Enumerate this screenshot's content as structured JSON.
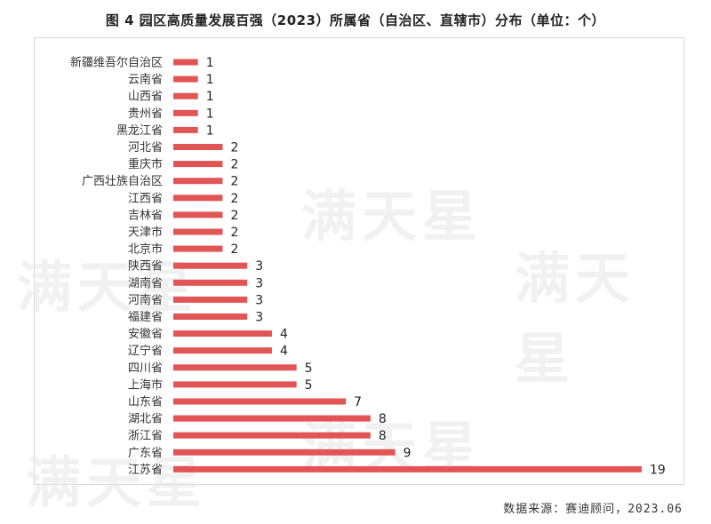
{
  "title": "图 4 园区高质量发展百强（2023）所属省（自治区、直辖市）分布（单位：个）",
  "source": "数据来源：赛迪顾问，2023.06",
  "watermark": "满天星",
  "colors": {
    "bar": "#e15555",
    "label": "#333333",
    "value": "#222222"
  },
  "chart_data": {
    "type": "bar",
    "orientation": "horizontal",
    "title": "图 4 园区高质量发展百强（2023）所属省（自治区、直辖市）分布（单位：个）",
    "xlim": [
      0,
      19
    ],
    "grid": false,
    "categories": [
      "新疆维吾尔自治区",
      "云南省",
      "山西省",
      "贵州省",
      "黑龙江省",
      "河北省",
      "重庆市",
      "广西壮族自治区",
      "江西省",
      "吉林省",
      "天津市",
      "北京市",
      "陕西省",
      "湖南省",
      "河南省",
      "福建省",
      "安徽省",
      "辽宁省",
      "四川省",
      "上海市",
      "山东省",
      "湖北省",
      "浙江省",
      "广东省",
      "江苏省"
    ],
    "values": [
      1,
      1,
      1,
      1,
      1,
      2,
      2,
      2,
      2,
      2,
      2,
      2,
      3,
      3,
      3,
      3,
      4,
      4,
      5,
      5,
      7,
      8,
      8,
      9,
      19
    ]
  }
}
